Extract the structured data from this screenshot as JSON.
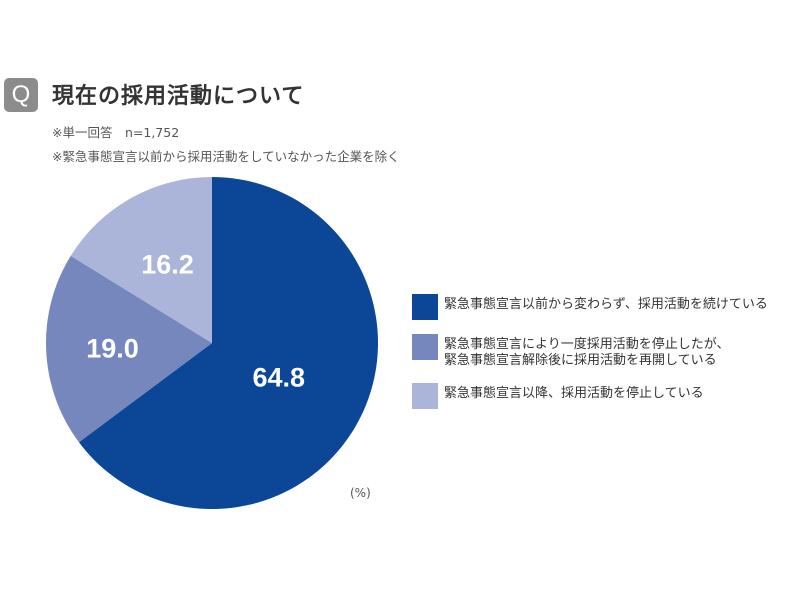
{
  "header": {
    "q_badge": "Q",
    "title": "現在の採用活動について",
    "note1": "※単一回答　n=1,752",
    "note2": "※緊急事態宣言以前から採用活動をしていなかった企業を除く"
  },
  "chart_data": {
    "type": "pie",
    "title": "現在の採用活動について",
    "unit": "(%)",
    "categories": [
      "緊急事態宣言以前から変わらず、採用活動を続けている",
      "緊急事態宣言により一度採用活動を停止したが、\n緊急事態宣言解除後に採用活動を再開している",
      "緊急事態宣言以降、採用活動を停止している"
    ],
    "values": [
      64.8,
      19.0,
      16.2
    ],
    "labels": [
      "64.8",
      "19.0",
      "16.2"
    ],
    "colors": [
      "#0b4796",
      "#7587bd",
      "#abb4d9"
    ],
    "legend": "right"
  }
}
